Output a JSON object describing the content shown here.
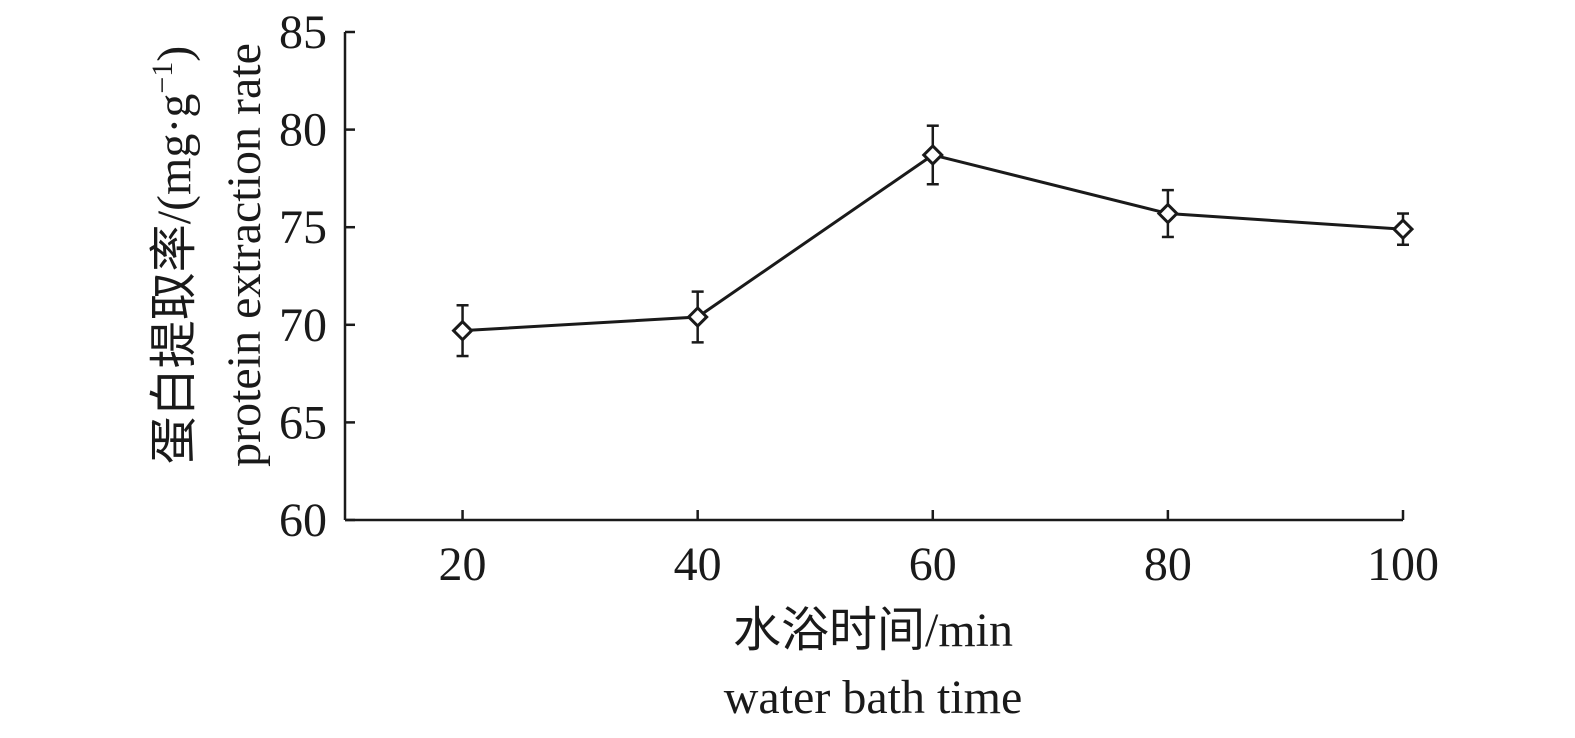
{
  "chart_data": {
    "type": "line",
    "x": [
      20,
      40,
      60,
      80,
      100
    ],
    "xticks": [
      "20",
      "40",
      "60",
      "80",
      "100"
    ],
    "xlim": [
      10,
      100
    ],
    "ylim": [
      60,
      85
    ],
    "yticks": [
      60,
      65,
      70,
      75,
      80,
      85
    ],
    "series": [
      {
        "values": [
          69.7,
          70.4,
          78.7,
          75.7,
          74.9
        ],
        "error": [
          1.3,
          1.3,
          1.5,
          1.2,
          0.8
        ],
        "marker": "diamond-open"
      }
    ],
    "xlabel": {
      "line1": "水浴时间/min",
      "line2": "water bath time"
    },
    "ylabel": {
      "line1": "蛋白提取率/(mg·g",
      "line1_sup": "−1",
      "line1_end": ")",
      "line2": "protein extraction rate"
    },
    "grid": false,
    "legend": "none",
    "colors": {
      "ink": "#1a1a1a",
      "marker_fill": "#ffffff"
    }
  }
}
